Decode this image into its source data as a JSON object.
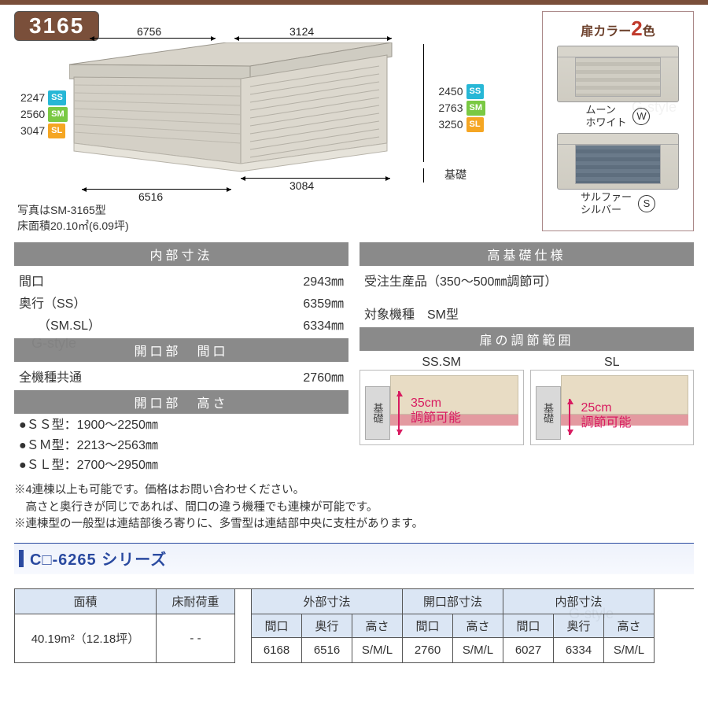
{
  "model_number": "3165",
  "header_border_color": "#7a4f3a",
  "diagram": {
    "top_depth": "6756",
    "top_width": "3124",
    "bottom_depth": "6516",
    "bottom_width": "3084",
    "caption_line1": "写真はSM-3165型",
    "caption_line2": "床面積20.10㎡(6.09坪)",
    "left_heights": [
      {
        "value": "2247",
        "tag": "SS",
        "color": "#27b7d6"
      },
      {
        "value": "2560",
        "tag": "SM",
        "color": "#7ac943"
      },
      {
        "value": "3047",
        "tag": "SL",
        "color": "#f5a623"
      }
    ],
    "right_heights": [
      {
        "value": "2450",
        "tag": "SS",
        "color": "#27b7d6"
      },
      {
        "value": "2763",
        "tag": "SM",
        "color": "#7ac943"
      },
      {
        "value": "3250",
        "tag": "SL",
        "color": "#f5a623"
      }
    ],
    "base_label": "基礎"
  },
  "color_panel": {
    "title_prefix": "扉カラー",
    "count": "2",
    "count_suffix": "色",
    "swatches": [
      {
        "name_l1": "ムーン",
        "name_l2": "ホワイト",
        "code": "W",
        "door": "white"
      },
      {
        "name_l1": "サルファー",
        "name_l2": "シルバー",
        "code": "S",
        "door": "silver"
      }
    ]
  },
  "specs_left": {
    "sec1_title": "内部寸法",
    "sec1_rows": [
      {
        "label": "間口",
        "value": "2943㎜"
      },
      {
        "label": "奥行（SS）",
        "value": "6359㎜"
      },
      {
        "label": "　　（SM.SL）",
        "value": "6334㎜"
      }
    ],
    "sec2_title": "開口部　間口",
    "sec2_rows": [
      {
        "label": "全機種共通",
        "value": "2760㎜"
      }
    ],
    "sec3_title": "開口部　高さ",
    "sec3_bullets": [
      "●ＳＳ型：1900～2250㎜",
      "●ＳＭ型：2213～2563㎜",
      "●ＳＬ型：2700～2950㎜"
    ]
  },
  "specs_right": {
    "sec1_title": "高基礎仕様",
    "sec1_line": "受注生産品（350～500㎜調節可）",
    "sec1_model": "対象機種　SM型",
    "sec2_title": "扉の調節範囲",
    "adjust": [
      {
        "label": "SS.SM",
        "amount": "35cm",
        "text": "調節可能"
      },
      {
        "label": "SL",
        "amount": "25cm",
        "text": "調節可能"
      }
    ]
  },
  "notes": [
    "※4連棟以上も可能です。価格はお問い合わせください。",
    "　高さと奥行きが同じであれば、間口の違う機種でも連棟が可能です。",
    "※連棟型の一般型は連結部後ろ寄りに、多雪型は連結部中央に支柱があります。"
  ],
  "series": {
    "title": "C□-6265 シリーズ"
  },
  "table": {
    "area_header": "面積",
    "load_header": "床耐荷重",
    "area_value": "40.19m²（12.18坪）",
    "load_value": "- -",
    "groups": [
      {
        "title": "外部寸法",
        "cols": [
          "間口",
          "奥行",
          "高さ"
        ],
        "vals": [
          "6168",
          "6516",
          "S/M/L"
        ]
      },
      {
        "title": "開口部寸法",
        "cols": [
          "間口",
          "高さ"
        ],
        "vals": [
          "2760",
          "S/M/L"
        ]
      },
      {
        "title": "内部寸法",
        "cols": [
          "間口",
          "奥行",
          "高さ"
        ],
        "vals": [
          "6027",
          "6334",
          "S/M/L"
        ]
      }
    ]
  }
}
